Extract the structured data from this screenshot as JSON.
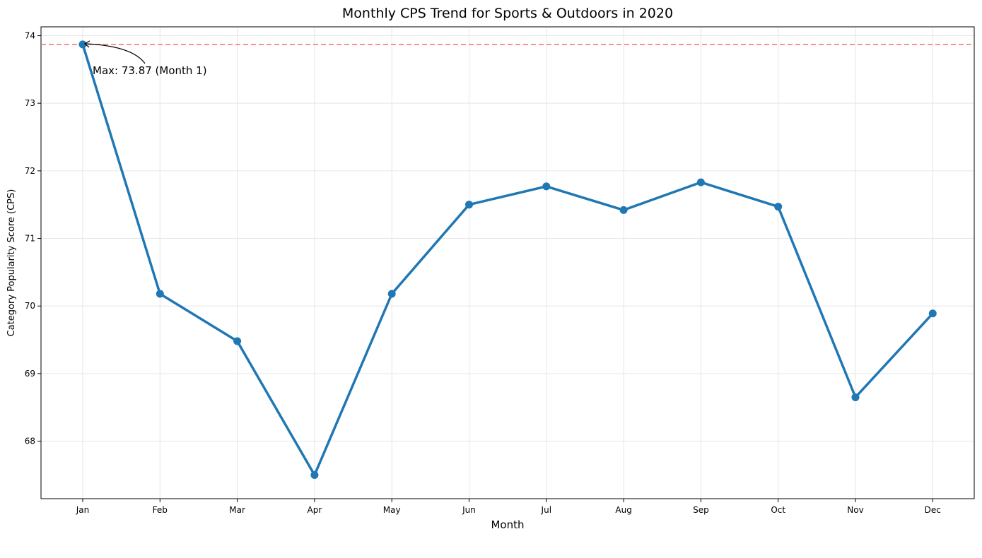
{
  "chart_data": {
    "type": "line",
    "title": "Monthly CPS Trend for Sports & Outdoors in 2020",
    "xlabel": "Month",
    "ylabel": "Category Popularity Score (CPS)",
    "categories": [
      "Jan",
      "Feb",
      "Mar",
      "Apr",
      "May",
      "Jun",
      "Jul",
      "Aug",
      "Sep",
      "Oct",
      "Nov",
      "Dec"
    ],
    "series": [
      {
        "values": [
          73.87,
          70.18,
          69.48,
          67.5,
          70.18,
          71.5,
          71.77,
          71.42,
          71.83,
          71.47,
          68.65,
          69.89
        ],
        "color": "#1f77b4"
      }
    ],
    "ylim": [
      67.15,
      74.13
    ],
    "yticks": [
      68,
      69,
      70,
      71,
      72,
      73,
      74
    ],
    "grid": true,
    "reference_line": {
      "value": 73.87,
      "color": "#ff6b6b",
      "style": "dashed"
    },
    "annotation": {
      "text": "Max: 73.87 (Month 1)",
      "category_index": 0
    }
  }
}
